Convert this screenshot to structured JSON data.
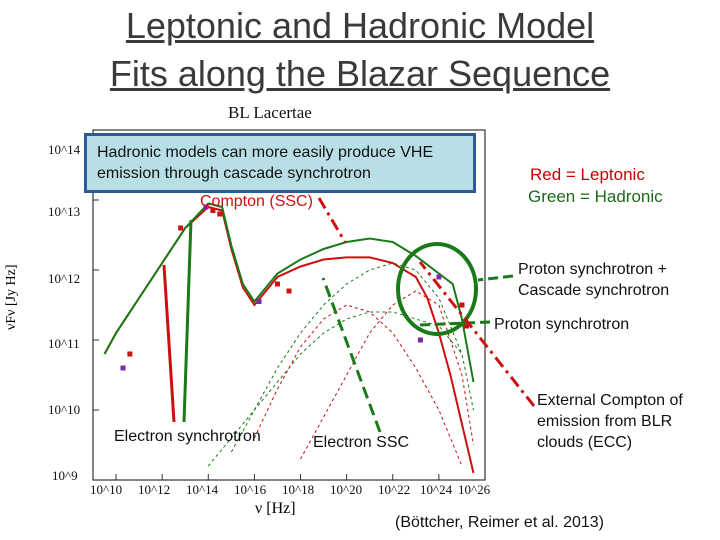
{
  "slide": {
    "title_line1": "Leptonic and Hadronic Model",
    "title_line2": "Fits along the Blazar Sequence",
    "callout": "Hadronic models can more easily produce VHE emission through cascade synchrotron",
    "partial_label": "Compton (SSC)",
    "legend_leptonic": "Red = Leptonic",
    "legend_hadronic": "Green = Hadronic",
    "citation": "(Böttcher, Reimer et al. 2013)",
    "colors": {
      "leptonic": "#cc1010",
      "hadronic": "#1a7a1a",
      "accent": "#2d5a97"
    }
  },
  "annotations": {
    "proton_cascade": "Proton synchrotron + Cascade synchrotron",
    "proton_sync": "Proton synchrotron",
    "electron_sync_overlap_a": "Electron synchrotron",
    "electron_ssc": "Electron SSC",
    "ecc": "External Compton of emission from BLR clouds (ECC)"
  },
  "chart_data": {
    "type": "line",
    "title": "BL Lacertae",
    "xlabel": "ν [Hz]",
    "ylabel": "νFν [Jy Hz]",
    "xscale": "log",
    "yscale": "log",
    "xlim": [
      1000000000.0,
      1e+26
    ],
    "ylim": [
      1000000000.0,
      100000000000000.0
    ],
    "x_ticks": [
      "10^10",
      "10^12",
      "10^14",
      "10^16",
      "10^18",
      "10^20",
      "10^22",
      "10^24",
      "10^26"
    ],
    "y_ticks": [
      "10^9",
      "10^10",
      "10^11",
      "10^12",
      "10^13",
      "10^14"
    ],
    "series": [
      {
        "name": "Leptonic",
        "color": "#cc1010",
        "x": [
          9.5,
          10,
          11,
          12,
          13,
          14,
          14.6,
          15,
          15.5,
          16,
          16.5,
          17,
          18,
          19,
          20,
          21,
          22,
          23,
          23.5,
          24,
          24.5,
          25,
          25.5
        ],
        "y": [
          10.8,
          11.1,
          11.6,
          12.1,
          12.6,
          12.9,
          12.85,
          12.3,
          11.75,
          11.5,
          11.7,
          11.9,
          12.05,
          12.15,
          12.18,
          12.18,
          12.1,
          11.9,
          11.6,
          11.1,
          10.5,
          9.8,
          9.1
        ]
      },
      {
        "name": "Hadronic",
        "color": "#1a7a1a",
        "x": [
          9.5,
          10,
          11,
          12,
          13,
          14,
          14.6,
          15,
          15.5,
          16,
          16.5,
          17,
          18,
          19,
          20,
          21,
          22,
          23,
          24,
          24.6,
          25,
          25.5
        ],
        "y": [
          10.8,
          11.1,
          11.6,
          12.1,
          12.6,
          12.95,
          12.9,
          12.35,
          11.8,
          11.55,
          11.75,
          11.95,
          12.15,
          12.3,
          12.4,
          12.45,
          12.4,
          12.2,
          11.95,
          11.8,
          11.3,
          10.4
        ]
      },
      {
        "name": "Proton synchrotron",
        "color": "#1a7a1a",
        "dashed": true,
        "x": [
          15,
          16,
          17,
          18,
          19,
          20,
          21,
          22,
          23,
          24,
          25
        ],
        "y": [
          9.4,
          10.0,
          10.6,
          11.1,
          11.5,
          11.8,
          12.0,
          12.1,
          12.0,
          11.6,
          10.8
        ]
      },
      {
        "name": "Cascade synchrotron",
        "color": "#1a7a1a",
        "dashed": true,
        "x": [
          14,
          15,
          16,
          17,
          18,
          19,
          20,
          21,
          22,
          23,
          24,
          25,
          25.5
        ],
        "y": [
          9.2,
          9.6,
          10.0,
          10.4,
          10.8,
          11.1,
          11.3,
          11.4,
          11.4,
          11.3,
          11.2,
          10.8,
          10.0
        ]
      },
      {
        "name": "Electron SSC",
        "color": "#cc1010",
        "dashed": true,
        "x": [
          16,
          17,
          18,
          19,
          20,
          21,
          22,
          23,
          24,
          25
        ],
        "y": [
          9.6,
          10.3,
          10.9,
          11.3,
          11.5,
          11.4,
          11.1,
          10.6,
          10.0,
          9.2
        ]
      },
      {
        "name": "ECC",
        "color": "#cc1010",
        "dashed": true,
        "x": [
          18,
          19,
          20,
          21,
          22,
          23,
          24,
          25,
          25.5
        ],
        "y": [
          9.3,
          9.9,
          10.5,
          11.1,
          11.5,
          11.7,
          11.5,
          10.5,
          9.5
        ]
      }
    ],
    "data_points": {
      "x": [
        10.3,
        10.6,
        12.8,
        13.9,
        14.2,
        14.5,
        16.2,
        17.0,
        17.5,
        24.0,
        25.0,
        25.2,
        23.2
      ],
      "y": [
        10.6,
        10.8,
        12.6,
        12.9,
        12.85,
        12.8,
        11.55,
        11.8,
        11.7,
        11.9,
        11.5,
        11.2,
        11.0
      ]
    }
  }
}
